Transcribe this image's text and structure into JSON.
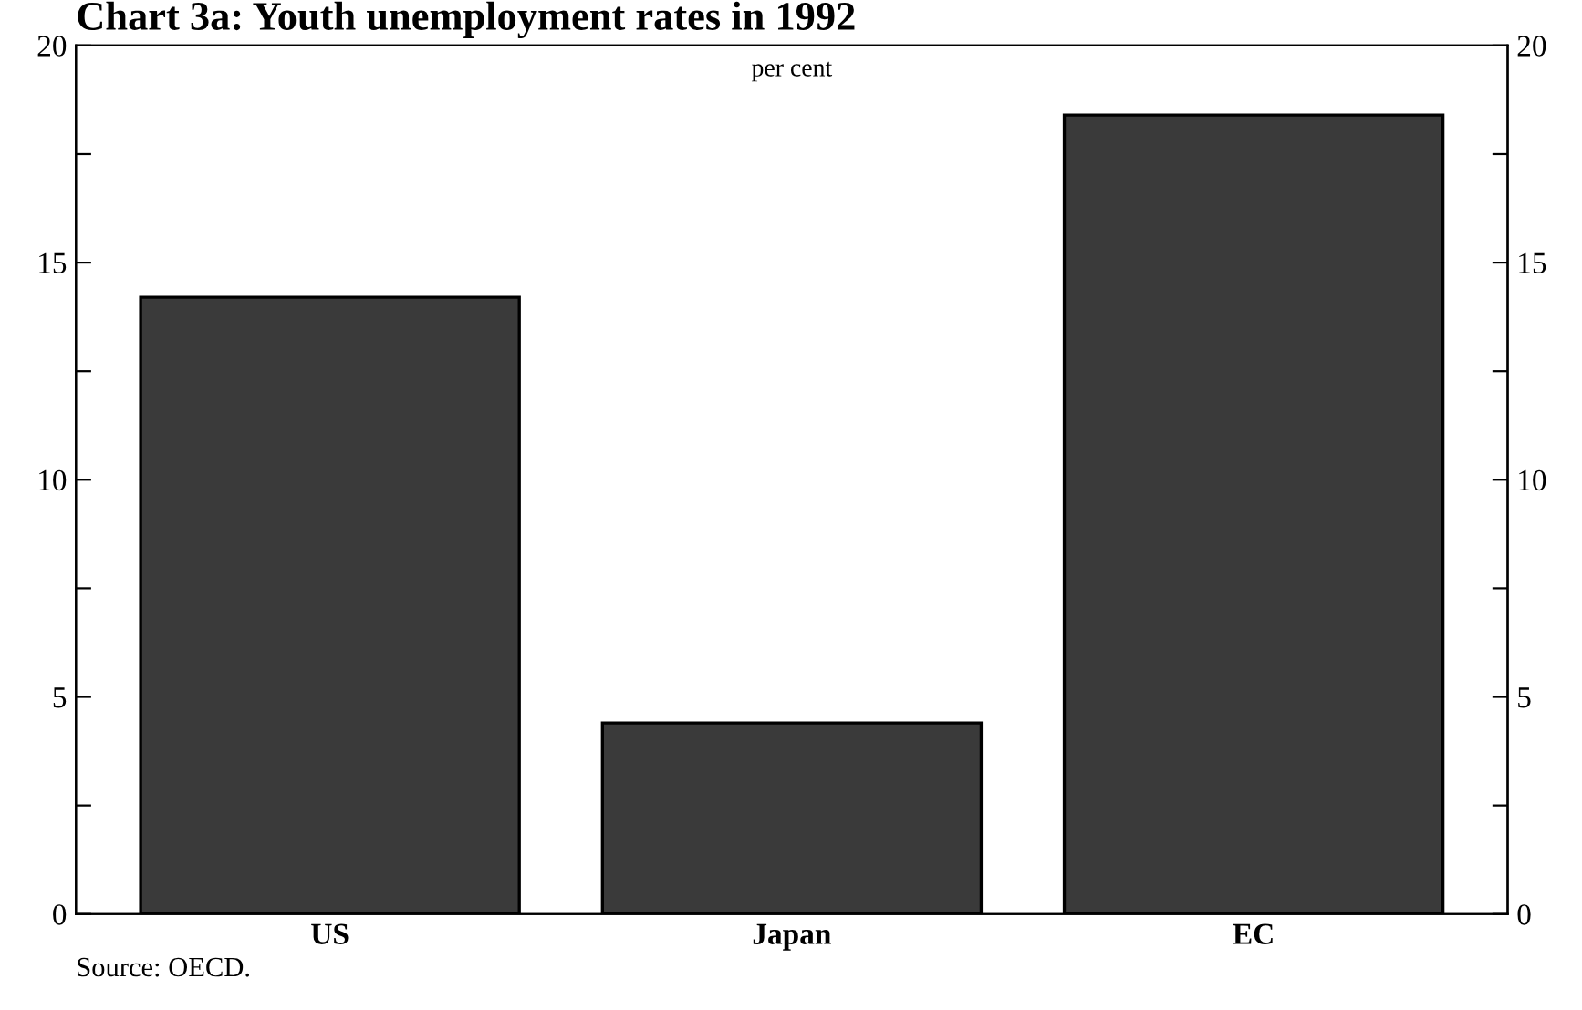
{
  "chart_data": {
    "type": "bar",
    "title": "Chart 3a: Youth unemployment rates in 1992",
    "subtitle": "per cent",
    "categories": [
      "US",
      "Japan",
      "EC"
    ],
    "values": [
      14.2,
      4.4,
      18.4
    ],
    "color": "#3a3a3a",
    "ylim": [
      0,
      20
    ],
    "yticks": [
      0,
      {
        "value": 2.5,
        "label": null
      },
      5,
      {
        "value": 7.5,
        "label": null
      },
      10,
      {
        "value": 12.5,
        "label": null
      },
      15,
      {
        "value": 17.5,
        "label": null
      },
      20
    ],
    "y2lim": [
      0,
      20
    ],
    "y2ticks": [
      0,
      {
        "value": 2.5,
        "label": null
      },
      5,
      {
        "value": 7.5,
        "label": null
      },
      10,
      {
        "value": 12.5,
        "label": null
      },
      15,
      {
        "value": 17.5,
        "label": null
      },
      20
    ],
    "grid": false,
    "annotations": [
      "Source: OECD."
    ]
  }
}
